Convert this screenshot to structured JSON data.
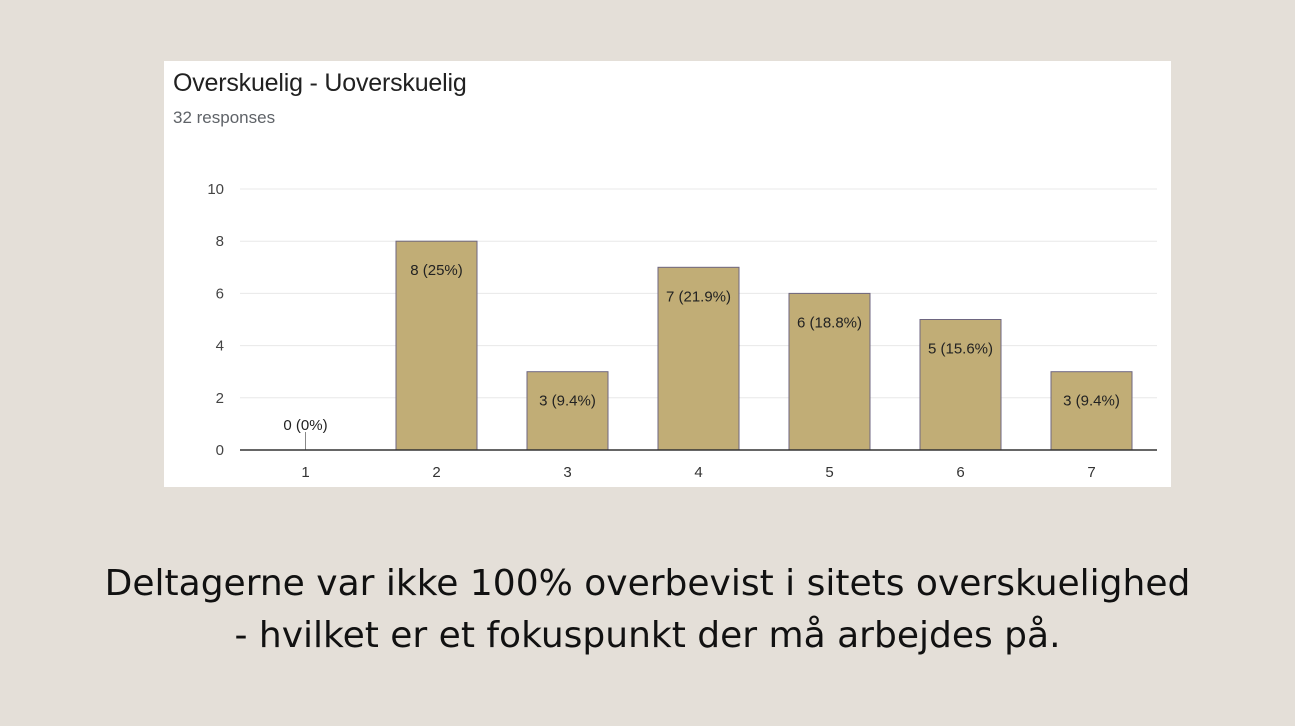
{
  "chart_data": {
    "type": "bar",
    "title": "Overskuelig - Uoverskuelig",
    "subtitle": "32 responses",
    "categories": [
      "1",
      "2",
      "3",
      "4",
      "5",
      "6",
      "7"
    ],
    "values": [
      0,
      8,
      3,
      7,
      6,
      5,
      3
    ],
    "data_labels": [
      "0 (0%)",
      "8 (25%)",
      "3 (9.4%)",
      "7 (21.9%)",
      "6 (18.8%)",
      "5 (15.6%)",
      "3 (9.4%)"
    ],
    "y_ticks": [
      "0",
      "2",
      "4",
      "6",
      "8",
      "10"
    ],
    "ylim": [
      0,
      10
    ],
    "grid": true,
    "bar_color": "#c1ad76"
  },
  "caption": {
    "line1": "Deltagerne var ikke 100% overbevist i sitets overskuelighed",
    "line2": "- hvilket er et fokuspunkt der må arbejdes på."
  }
}
